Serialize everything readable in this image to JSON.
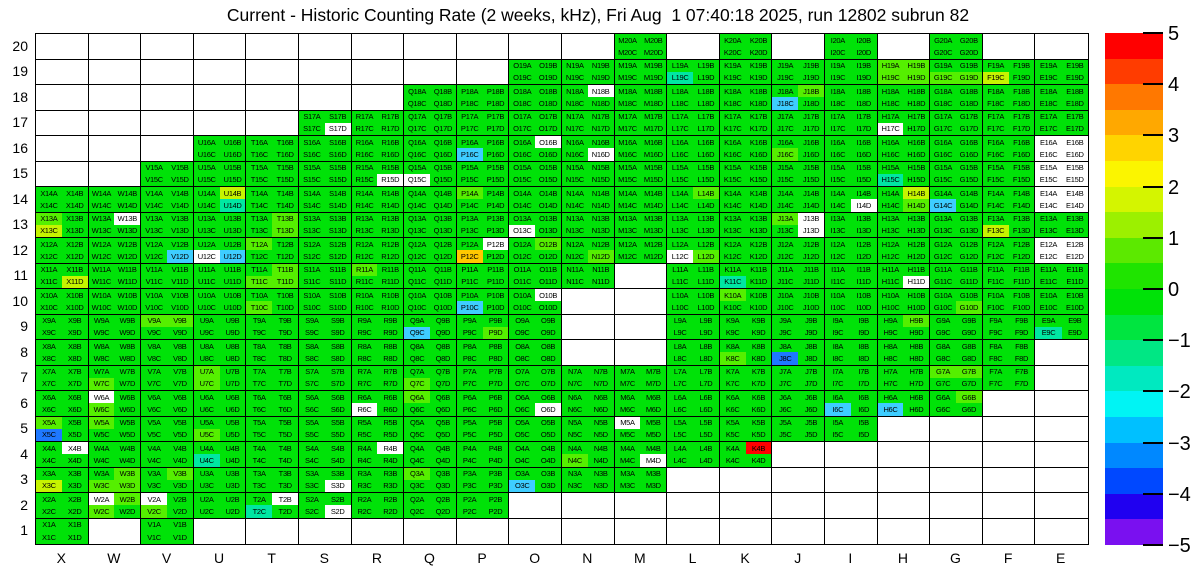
{
  "title": "Current - Historic Counting Rate (2 weeks, kHz), Fri Aug  1 07:40:18 2025, run 12802 subrun 82",
  "chart_data": {
    "type": "heatmap",
    "title": "Current - Historic Counting Rate (2 weeks, kHz), Fri Aug  1 07:40:18 2025, run 12802 subrun 82",
    "x_axis": {
      "labels": [
        "X",
        "W",
        "V",
        "U",
        "T",
        "S",
        "R",
        "Q",
        "P",
        "O",
        "N",
        "M",
        "L",
        "K",
        "J",
        "I",
        "H",
        "G",
        "F",
        "E"
      ]
    },
    "y_axis": {
      "labels": [
        "20",
        "19",
        "18",
        "17",
        "16",
        "15",
        "14",
        "13",
        "12",
        "11",
        "10",
        "9",
        "8",
        "7",
        "6",
        "5",
        "4",
        "3",
        "2",
        "1"
      ]
    },
    "subcells": [
      "A",
      "B",
      "C",
      "D"
    ],
    "cell_label_format": "{column}{row}{subcell}",
    "default_value_color": "green",
    "palette": {
      "green": "#00e208",
      "lime": "#55ef00",
      "yg": "#c6f400",
      "amber": "#ffc800",
      "red": "#ff0000",
      "teal": "#00e7a2",
      "cyan": "#3ecdff",
      "blue": "#1e78ff",
      "white": "#ffffff"
    },
    "rows": [
      {
        "row": 20,
        "columns": [
          "M",
          "K",
          "I",
          "G"
        ]
      },
      {
        "row": 19,
        "columns": [
          "O",
          "N",
          "M",
          "L",
          "K",
          "J",
          "I",
          "H",
          "G",
          "F",
          "E"
        ]
      },
      {
        "row": 18,
        "columns": [
          "Q",
          "P",
          "O",
          "N",
          "M",
          "L",
          "K",
          "J",
          "I",
          "H",
          "G",
          "F",
          "E"
        ]
      },
      {
        "row": 17,
        "columns": [
          "S",
          "R",
          "Q",
          "P",
          "O",
          "N",
          "M",
          "L",
          "K",
          "J",
          "I",
          "H",
          "G",
          "F",
          "E"
        ]
      },
      {
        "row": 16,
        "columns": [
          "U",
          "T",
          "S",
          "R",
          "Q",
          "P",
          "O",
          "N",
          "M",
          "L",
          "K",
          "J",
          "I",
          "H",
          "G",
          "F",
          "E"
        ]
      },
      {
        "row": 15,
        "columns": [
          "V",
          "U",
          "T",
          "S",
          "R",
          "Q",
          "P",
          "O",
          "N",
          "M",
          "L",
          "K",
          "J",
          "I",
          "H",
          "G",
          "F",
          "E"
        ]
      },
      {
        "row": 14,
        "columns": [
          "X",
          "W",
          "V",
          "U",
          "T",
          "S",
          "R",
          "Q",
          "P",
          "O",
          "N",
          "M",
          "L",
          "K",
          "J",
          "I",
          "H",
          "G",
          "F",
          "E"
        ]
      },
      {
        "row": 13,
        "columns": [
          "X",
          "W",
          "V",
          "U",
          "T",
          "S",
          "R",
          "Q",
          "P",
          "O",
          "N",
          "M",
          "L",
          "K",
          "J",
          "I",
          "H",
          "G",
          "F",
          "E"
        ]
      },
      {
        "row": 12,
        "columns": [
          "X",
          "W",
          "V",
          "U",
          "T",
          "S",
          "R",
          "Q",
          "P",
          "O",
          "N",
          "M",
          "L",
          "K",
          "J",
          "I",
          "H",
          "G",
          "F",
          "E"
        ]
      },
      {
        "row": 11,
        "columns": [
          "X",
          "W",
          "V",
          "U",
          "T",
          "S",
          "R",
          "Q",
          "P",
          "O",
          "N",
          "L",
          "K",
          "J",
          "I",
          "H",
          "G",
          "F",
          "E"
        ]
      },
      {
        "row": 10,
        "columns": [
          "X",
          "W",
          "V",
          "U",
          "T",
          "S",
          "R",
          "Q",
          "P",
          "O",
          "L",
          "K",
          "J",
          "I",
          "H",
          "G",
          "F",
          "E"
        ]
      },
      {
        "row": 9,
        "columns": [
          "X",
          "W",
          "V",
          "U",
          "T",
          "S",
          "R",
          "Q",
          "P",
          "O",
          "L",
          "K",
          "J",
          "I",
          "H",
          "G",
          "F",
          "E"
        ]
      },
      {
        "row": 8,
        "columns": [
          "X",
          "W",
          "V",
          "U",
          "T",
          "S",
          "R",
          "Q",
          "P",
          "O",
          "L",
          "K",
          "J",
          "I",
          "H",
          "G",
          "F"
        ]
      },
      {
        "row": 7,
        "columns": [
          "X",
          "W",
          "V",
          "U",
          "T",
          "S",
          "R",
          "Q",
          "P",
          "O",
          "N",
          "M",
          "L",
          "K",
          "J",
          "I",
          "H",
          "G",
          "F"
        ]
      },
      {
        "row": 6,
        "columns": [
          "X",
          "W",
          "V",
          "U",
          "T",
          "S",
          "R",
          "Q",
          "P",
          "O",
          "N",
          "M",
          "L",
          "K",
          "J",
          "I",
          "H",
          "G"
        ]
      },
      {
        "row": 5,
        "columns": [
          "X",
          "W",
          "V",
          "U",
          "T",
          "S",
          "R",
          "Q",
          "P",
          "O",
          "N",
          "M",
          "L",
          "K",
          "J",
          "I"
        ]
      },
      {
        "row": 4,
        "columns": [
          "X",
          "W",
          "V",
          "U",
          "T",
          "S",
          "R",
          "Q",
          "P",
          "O",
          "N",
          "M",
          "L",
          "K"
        ]
      },
      {
        "row": 3,
        "columns": [
          "X",
          "W",
          "V",
          "U",
          "T",
          "S",
          "R",
          "Q",
          "P",
          "O",
          "N",
          "M"
        ]
      },
      {
        "row": 2,
        "columns": [
          "X",
          "W",
          "V",
          "U",
          "T",
          "S",
          "R",
          "Q",
          "P"
        ]
      },
      {
        "row": 1,
        "columns": [
          "X",
          "V"
        ]
      }
    ],
    "cell_colors": {
      "L19C": "teal",
      "H19A": "lime",
      "H19B": "lime",
      "H19C": "lime",
      "H19D": "lime",
      "G19C": "lime",
      "G19D": "lime",
      "F19C": "yg",
      "N18B": "white",
      "J18B": "lime",
      "J18C": "cyan",
      "S17D": "white",
      "H17C": "white",
      "P16C": "cyan",
      "O16B": "white",
      "N16D": "white",
      "J16C": "lime",
      "E16A": "white",
      "E16B": "white",
      "E16C": "white",
      "E16D": "white",
      "R15D": "white",
      "Q15C": "white",
      "H15C": "teal",
      "E15A": "white",
      "E15B": "white",
      "E15C": "white",
      "E15D": "white",
      "U14B": "yg",
      "U14D": "teal",
      "P14A": "lime",
      "L14B": "lime",
      "I14D": "white",
      "H14B": "yg",
      "H14D": "lime",
      "G14C": "cyan",
      "E14A": "white",
      "E14B": "white",
      "E14C": "white",
      "E14D": "white",
      "X13A": "lime",
      "X13C": "yg",
      "W13B": "white",
      "T13B": "lime",
      "T13D": "lime",
      "O13C": "white",
      "J13A": "lime",
      "J13B": "white",
      "J13D": "white",
      "F13C": "yg",
      "V12D": "cyan",
      "U12C": "white",
      "U12D": "cyan",
      "T12A": "lime",
      "P12B": "white",
      "P12C": "amber",
      "O12B": "lime",
      "N12D": "lime",
      "L12C": "white",
      "L12D": "lime",
      "E12A": "white",
      "E12B": "white",
      "E12C": "white",
      "E12D": "white",
      "X11D": "yg",
      "T11B": "lime",
      "T11C": "lime",
      "T11D": "lime",
      "R11A": "lime",
      "K11C": "teal",
      "H11D": "white",
      "T10C": "lime",
      "O10B": "white",
      "K10A": "lime",
      "G10D": "lime",
      "V9A": "lime",
      "V9B": "lime",
      "Q9C": "cyan",
      "P9D": "lime",
      "H9B": "lime",
      "E9C": "teal",
      "K8C": "lime",
      "J8C": "blue",
      "W7C": "lime",
      "U7A": "lime",
      "U7C": "lime",
      "Q7C": "lime",
      "G7A": "lime",
      "G7B": "lime",
      "W6A": "white",
      "W6C": "lime",
      "R6C": "white",
      "Q6A": "lime",
      "O6D": "white",
      "I6C": "cyan",
      "H6C": "cyan",
      "G6B": "lime",
      "X5A": "lime",
      "X5C": "blue",
      "W5A": "lime",
      "U5C": "lime",
      "M5A": "white",
      "X4B": "white",
      "U4C": "teal",
      "R4B": "white",
      "N4C": "lime",
      "M4D": "white",
      "K4B": "red",
      "X3C": "yg",
      "W3B": "lime",
      "W3C": "lime",
      "W3D": "lime",
      "V3B": "lime",
      "S3D": "white",
      "Q3A": "lime",
      "O3C": "cyan",
      "W2A": "white",
      "W2B": "lime",
      "W2C": "lime",
      "V2A": "white",
      "V2C": "lime",
      "T2B": "white",
      "T2C": "teal",
      "S2D": "white",
      "P10C": "cyan"
    },
    "colorbar": {
      "min": -5,
      "max": 5,
      "tick_labels": [
        "5",
        "4",
        "3",
        "2",
        "1",
        "0",
        "−1",
        "−2",
        "−3",
        "−4",
        "−5"
      ],
      "segment_colors_top_to_bottom": [
        "#ff0000",
        "#ff3c00",
        "#ff7800",
        "#ffa800",
        "#ffd400",
        "#fbf500",
        "#d4f500",
        "#9cf000",
        "#5ce900",
        "#1fe400",
        "#00e208",
        "#00e540",
        "#00e784",
        "#00e9c0",
        "#00f4f4",
        "#00c0ff",
        "#0088ff",
        "#0048ff",
        "#2000f0",
        "#7a10f0"
      ]
    },
    "layout": {
      "grid_on": true,
      "legend_position": "right-colorbar"
    }
  }
}
